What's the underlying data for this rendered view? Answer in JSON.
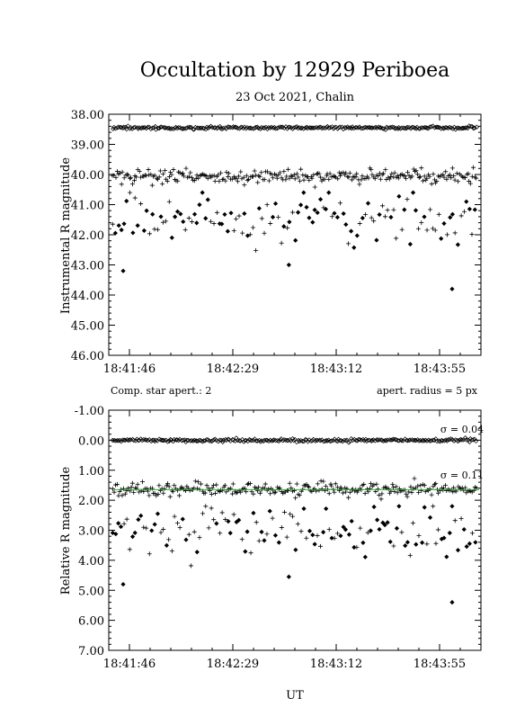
{
  "title": "Occultation by 12929 Periboea",
  "subtitle": "23 Oct 2021, Chalin",
  "xlabel": "UT",
  "chart_data": [
    {
      "type": "scatter",
      "ylabel": "Instrumental R magnitude",
      "x_ticks": [
        "18:41:46",
        "18:42:29",
        "18:43:12",
        "18:43:55"
      ],
      "y_ticks": [
        "38.00",
        "39.00",
        "40.00",
        "41.00",
        "42.00",
        "43.00",
        "44.00",
        "45.00",
        "46.00"
      ],
      "ylim": [
        46.0,
        38.0
      ],
      "xlim_seconds_from_start": [
        0,
        155
      ],
      "notes_below": {
        "left": "Comp. star apert.: 2",
        "right": "apert. radius = 5 px"
      },
      "series": [
        {
          "name": "",
          "marker": "open-diamond",
          "mean": 38.45,
          "scatter": 0.04
        },
        {
          "name": "",
          "marker": "plus",
          "mean": 40.05,
          "scatter": 0.11
        },
        {
          "name": "",
          "marker": "filled-diamond+plus",
          "mean": 41.5,
          "scatter_range": [
            40.6,
            43.25
          ],
          "outliers": [
            43.2,
            43.0,
            43.8
          ]
        }
      ]
    },
    {
      "type": "scatter",
      "ylabel": "Relative R magnitude",
      "x_ticks": [
        "18:41:46",
        "18:42:29",
        "18:43:12",
        "18:43:55"
      ],
      "y_ticks": [
        "-1.00",
        "0.00",
        "1.00",
        "2.00",
        "3.00",
        "4.00",
        "5.00",
        "6.00",
        "7.00"
      ],
      "ylim": [
        7.0,
        -1.0
      ],
      "xlim_seconds_from_start": [
        0,
        155
      ],
      "annotations": [
        "σ = 0.04",
        "σ = 0.11"
      ],
      "series": [
        {
          "name": "",
          "marker": "open-diamond",
          "mean": 0.0,
          "sigma": 0.04
        },
        {
          "name": "",
          "marker": "plus",
          "mean": 1.65,
          "sigma": 0.11,
          "fit_color": "#22aa22"
        },
        {
          "name": "",
          "marker": "filled-diamond+plus",
          "mean": 3.05,
          "scatter_range": [
            2.2,
            4.8
          ],
          "outliers": [
            4.8,
            4.55,
            5.4
          ]
        }
      ]
    }
  ]
}
